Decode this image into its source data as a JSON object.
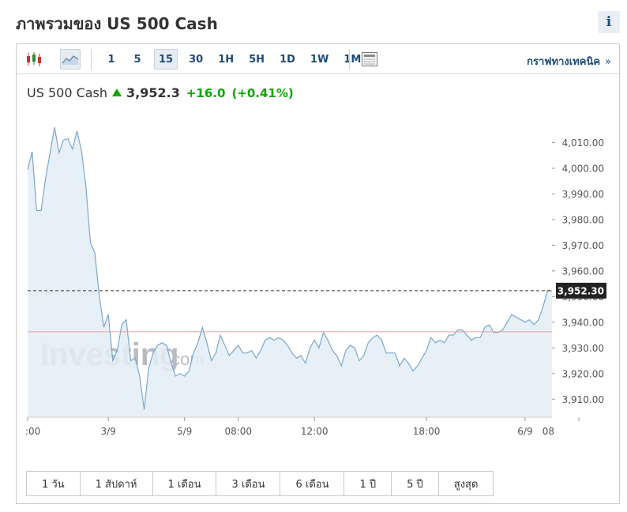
{
  "header": {
    "title": "ภาพรวมของ US 500 Cash",
    "info_label": "i"
  },
  "toolbar": {
    "icons": [
      "candlestick-icon",
      "area-chart-icon",
      "news-table-icon"
    ],
    "intervals": [
      "1",
      "5",
      "15",
      "30",
      "1H",
      "5H",
      "1D",
      "1W",
      "1M"
    ],
    "selected_interval": "15",
    "tech_link": "กราฟทางเทคนิค",
    "tech_chevron": "»"
  },
  "quote": {
    "name": "US 500 Cash",
    "price": "3,952.3",
    "change": "+16.0",
    "change_pct": "(+0.41%)",
    "direction": "up",
    "up_color": "#0ea600"
  },
  "watermark": {
    "main": "Investing",
    "suffix": ".com"
  },
  "ranges": [
    "1 วัน",
    "1 สัปดาห์",
    "1 เดือน",
    "3 เดือน",
    "6 เดือน",
    "1 ปี",
    "5 ปี",
    "สูงสุด"
  ],
  "chart_data": {
    "type": "area",
    "y_ticks": [
      3910,
      3920,
      3930,
      3940,
      3950,
      3960,
      3970,
      3980,
      3990,
      4000,
      4010
    ],
    "y_tick_labels": [
      "3,910.00",
      "3,920.00",
      "3,930.00",
      "3,940.00",
      "3,950.00",
      "3,960.00",
      "3,970.00",
      "3,980.00",
      "3,990.00",
      "4,000.00",
      "4,010.00"
    ],
    "ylim": [
      3903,
      4020
    ],
    "x_tick_labels": [
      ":00",
      "3/9",
      "5/9",
      "08:00",
      "12:00",
      "18:00",
      "6/9",
      "08"
    ],
    "x_tick_index": [
      0,
      18,
      35,
      47,
      64,
      89,
      111,
      123
    ],
    "last_price": 3952.3,
    "last_price_label": "3,952.30",
    "reference_price": 3936.3,
    "line_color": "#7aa7cf",
    "fill_color": "#e4edf6",
    "ref_line_color": "#e8a0a0",
    "values": [
      3999.5,
      4006.5,
      3983.5,
      3983.5,
      3996,
      4006,
      4016,
      4006,
      4011,
      4011.5,
      4007.5,
      4014.5,
      4007,
      3993,
      3971,
      3967,
      3950,
      3938,
      3943,
      3925,
      3929,
      3939,
      3941,
      3925,
      3926,
      3919,
      3906,
      3922,
      3928,
      3931,
      3932,
      3931,
      3924,
      3919,
      3920,
      3919,
      3921,
      3928,
      3932,
      3938,
      3932,
      3925,
      3928,
      3935,
      3931,
      3927,
      3929,
      3931,
      3928,
      3928,
      3929,
      3926,
      3929,
      3933,
      3934,
      3933,
      3934,
      3933,
      3931,
      3928,
      3926,
      3927,
      3924,
      3930,
      3933,
      3930,
      3936,
      3933,
      3929,
      3927,
      3923,
      3929,
      3931,
      3930,
      3925,
      3927,
      3932,
      3934,
      3935,
      3933,
      3928,
      3928,
      3928,
      3923,
      3926,
      3924,
      3921,
      3923,
      3926,
      3929,
      3934,
      3932,
      3933,
      3932,
      3935,
      3935,
      3937,
      3937,
      3935,
      3933,
      3934,
      3934,
      3938,
      3939,
      3936,
      3936,
      3937,
      3940,
      3943,
      3942,
      3941,
      3940,
      3941,
      3939,
      3941,
      3946,
      3952.3,
      3952.3
    ]
  }
}
